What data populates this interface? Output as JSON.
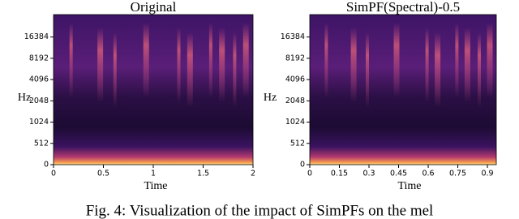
{
  "chart_data": [
    {
      "type": "spectrogram",
      "title": "Original",
      "xlabel": "Time",
      "ylabel": "Hz",
      "xlim": [
        0,
        2
      ],
      "xticks": [
        0,
        0.5,
        1,
        1.5,
        2
      ],
      "ylim": [
        0,
        34000
      ],
      "yscale": "symlog",
      "linthresh": 1024,
      "yticks": [
        0,
        512,
        1024,
        2048,
        4096,
        8192,
        16384
      ]
    },
    {
      "type": "spectrogram",
      "title": "SimPF(Spectral)-0.5",
      "xlabel": "Time",
      "ylabel": "Hz",
      "xlim": [
        0,
        0.945
      ],
      "xticks": [
        0,
        0.15,
        0.3,
        0.45,
        0.6,
        0.75,
        0.9
      ],
      "ylim": [
        0,
        34000
      ],
      "yscale": "symlog",
      "linthresh": 1024,
      "yticks": [
        0,
        512,
        1024,
        2048,
        4096,
        8192,
        16384
      ]
    }
  ],
  "caption": "Fig. 4: Visualization of the impact of SimPFs on the mel"
}
